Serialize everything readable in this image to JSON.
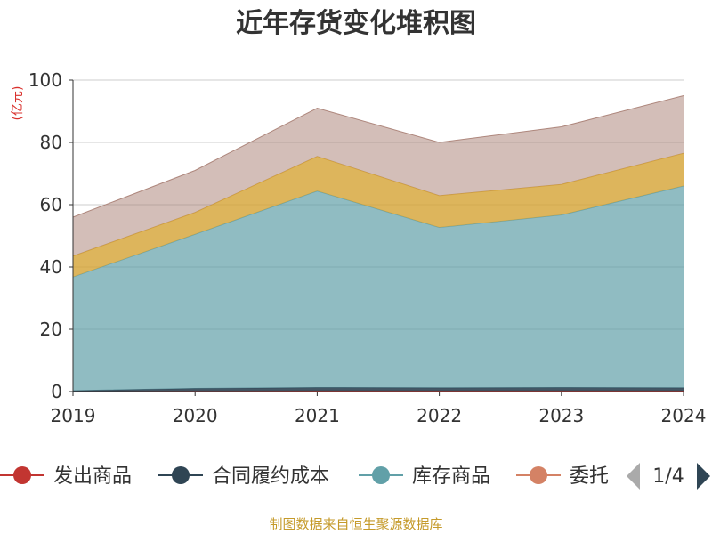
{
  "source_note": "制图数据来自恒生聚源数据库",
  "colors": {
    "grid": "#cccccc",
    "axis": "#333333",
    "legend_arrow_active": "#2f4554",
    "legend_arrow_inactive": "#aaaaaa"
  },
  "legend": {
    "page_indicator": "1/4",
    "items": [
      {
        "label": "发出商品",
        "color": "#c23531"
      },
      {
        "label": "合同履约成本",
        "color": "#2f4554"
      },
      {
        "label": "库存商品",
        "color": "#61a0a8"
      },
      {
        "label": "委托",
        "color": "#d48265"
      }
    ]
  },
  "chart_data": {
    "type": "area",
    "stacked": true,
    "title": "近年存货变化堆积图",
    "unit_label": "(亿元)",
    "x": [
      "2019",
      "2020",
      "2021",
      "2022",
      "2023",
      "2024"
    ],
    "ylim": [
      0,
      100
    ],
    "yticks": [
      0,
      20,
      40,
      60,
      80,
      100
    ],
    "grid": true,
    "legend_position": "bottom",
    "series": [
      {
        "name": "发出商品",
        "color": "#c23531",
        "opacity": 0.9,
        "values": [
          0.1,
          0.2,
          0.3,
          0.3,
          0.3,
          0.3
        ]
      },
      {
        "name": "合同履约成本",
        "color": "#2f4554",
        "opacity": 0.9,
        "values": [
          0.2,
          0.8,
          1.0,
          0.9,
          1.0,
          0.9
        ]
      },
      {
        "name": "库存商品",
        "color": "#61a0a8",
        "opacity": 0.7,
        "values": [
          36.5,
          49.5,
          63.1,
          51.5,
          55.4,
          64.8
        ]
      },
      {
        "name": "",
        "color": "#d5a233",
        "opacity": 0.8,
        "values": [
          6.7,
          7.0,
          11.1,
          10.2,
          9.8,
          10.5
        ]
      },
      {
        "name": "",
        "color": "#a77d72",
        "opacity": 0.5,
        "values": [
          12.5,
          13.5,
          15.5,
          17.1,
          18.5,
          18.5
        ]
      }
    ]
  }
}
